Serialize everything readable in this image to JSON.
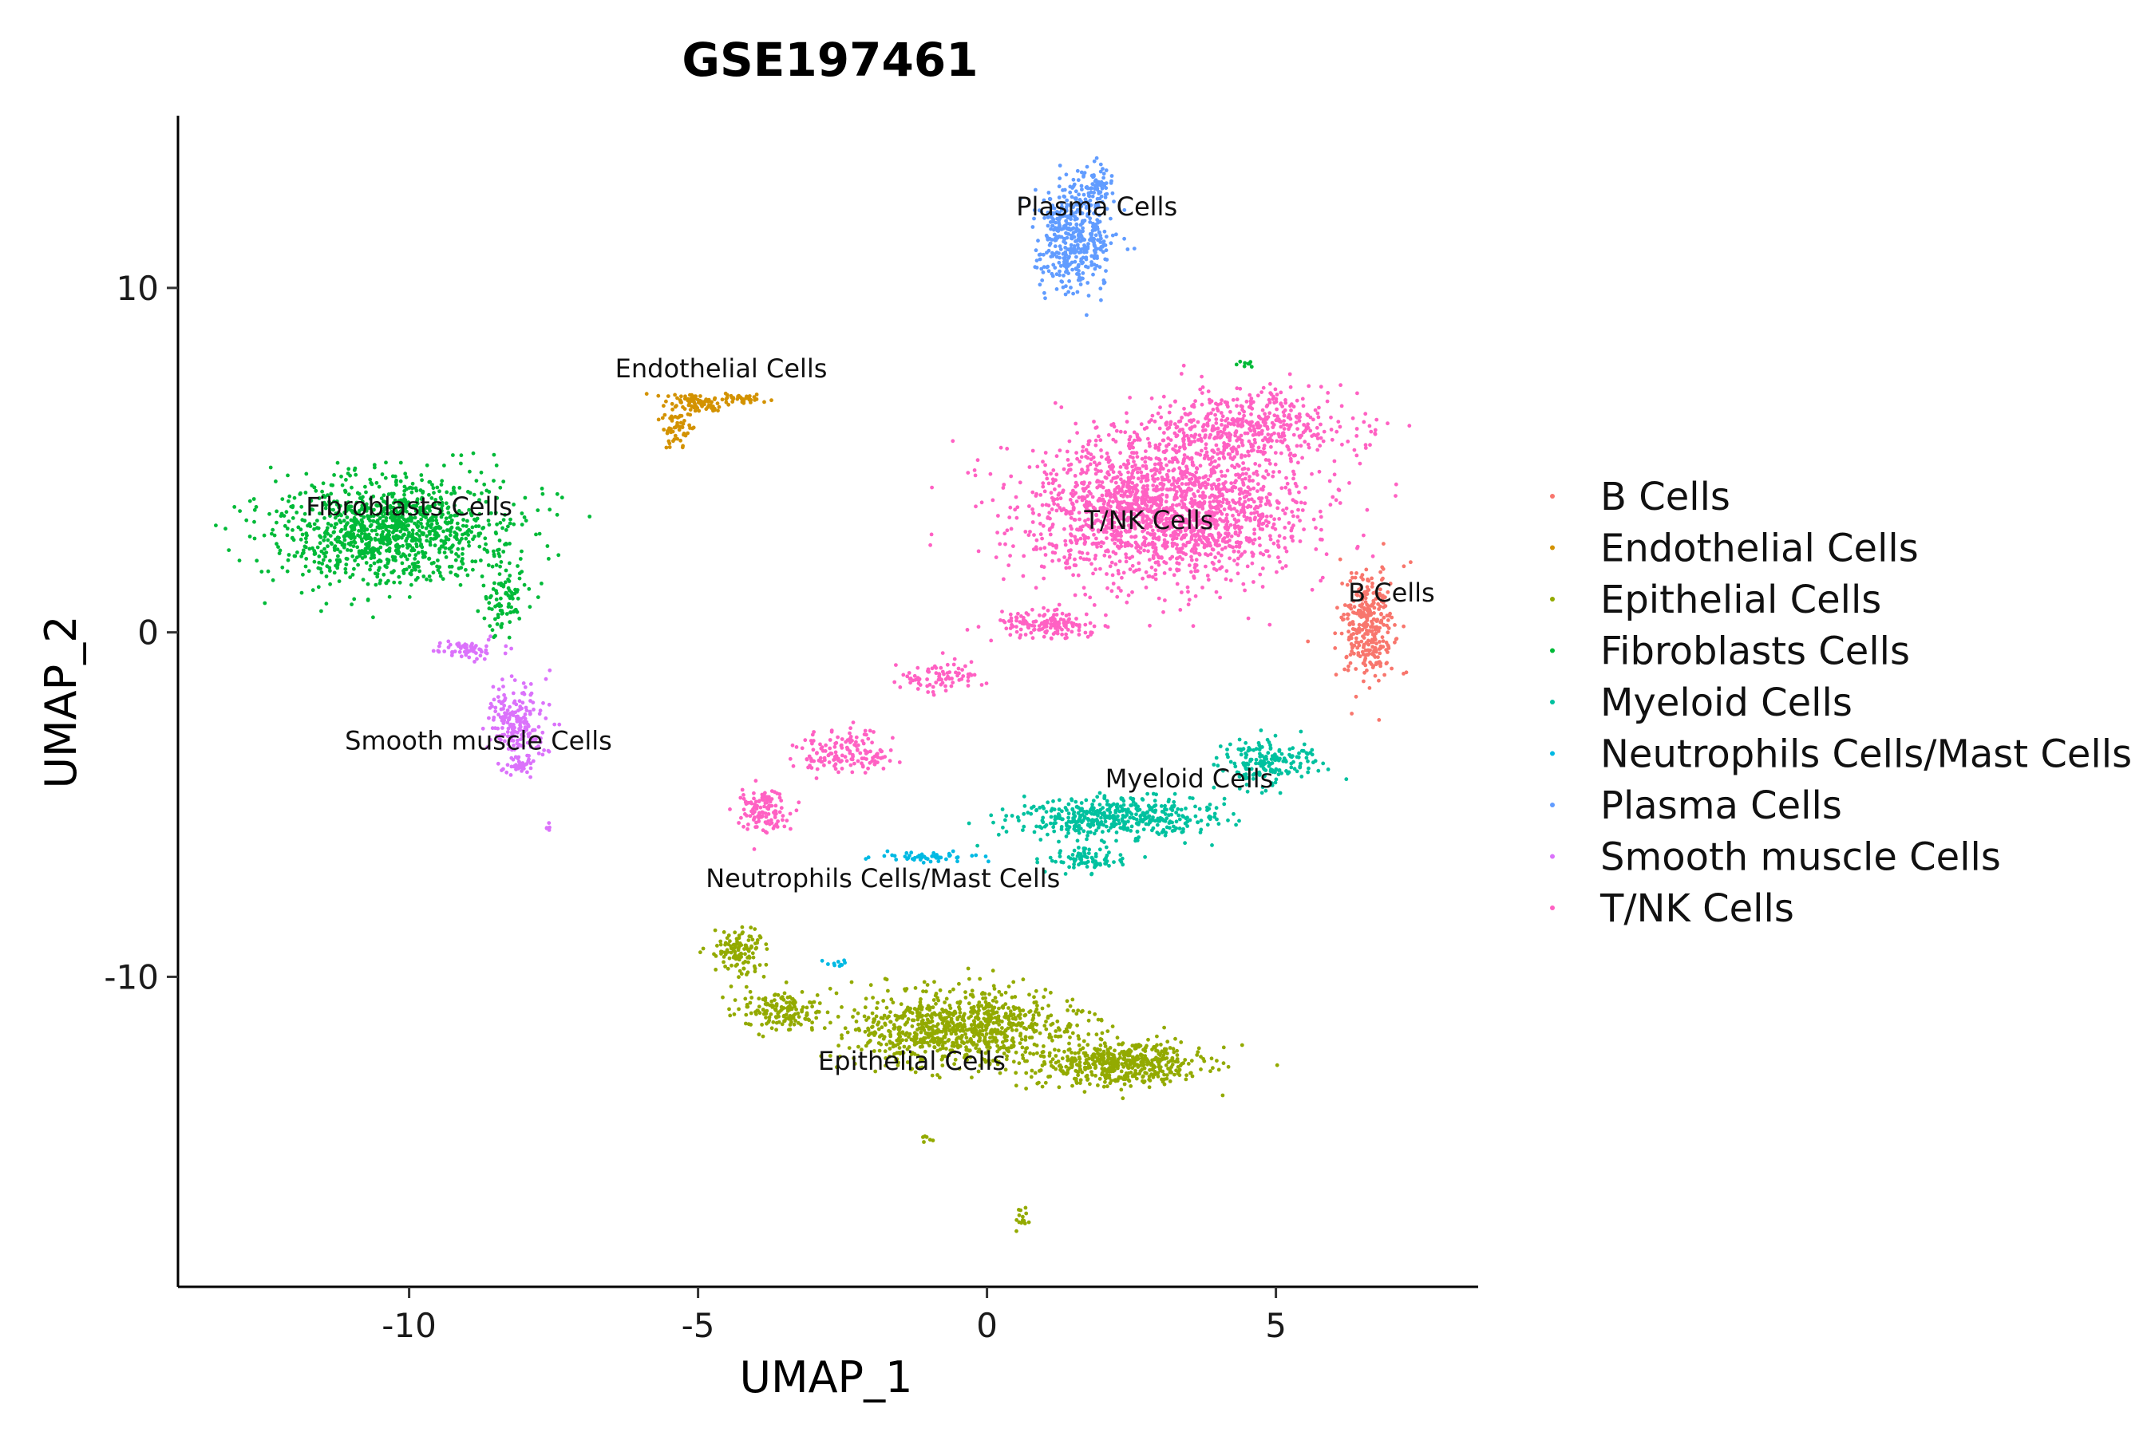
{
  "chart_data": {
    "type": "scatter",
    "title": "GSE197461",
    "xlabel": "UMAP_1",
    "ylabel": "UMAP_2",
    "xlim": [
      -14,
      8.5
    ],
    "ylim": [
      -19,
      15
    ],
    "x_ticks": [
      -10,
      -5,
      0,
      5
    ],
    "x_tick_labels": [
      "-10",
      "-5",
      "0",
      "5"
    ],
    "y_ticks": [
      10,
      0,
      -10
    ],
    "y_tick_labels": [
      "10",
      "0",
      "-10"
    ],
    "legend_position": "right",
    "series": [
      {
        "name": "B Cells",
        "color": "#F8766D",
        "blobs": [
          [
            6.6,
            0.2,
            0.45,
            1.5,
            320
          ]
        ],
        "label": {
          "text": "B Cells",
          "x": 7.0,
          "y": 0.9
        }
      },
      {
        "name": "Endothelial Cells",
        "color": "#D39200",
        "blobs": [
          [
            -5.0,
            6.7,
            0.55,
            0.25,
            90
          ],
          [
            -5.4,
            5.9,
            0.25,
            0.5,
            50
          ],
          [
            -4.2,
            6.8,
            0.4,
            0.12,
            30
          ]
        ],
        "label": {
          "text": "Endothelial Cells",
          "x": -4.6,
          "y": 7.4
        }
      },
      {
        "name": "Epithelial Cells",
        "color": "#93AA00",
        "blobs": [
          [
            -0.5,
            -11.5,
            1.8,
            1.0,
            900
          ],
          [
            2.3,
            -12.5,
            1.3,
            0.6,
            500
          ],
          [
            -4.3,
            -9.3,
            0.4,
            0.6,
            120
          ],
          [
            -3.6,
            -11.0,
            0.6,
            0.5,
            150
          ],
          [
            -1.0,
            -14.7,
            0.15,
            0.1,
            6
          ],
          [
            0.6,
            -17.0,
            0.15,
            0.4,
            14
          ]
        ],
        "label": {
          "text": "Epithelial Cells",
          "x": -1.3,
          "y": -12.7
        }
      },
      {
        "name": "Fibroblasts Cells",
        "color": "#00BA38",
        "blobs": [
          [
            -10.3,
            3.0,
            1.9,
            1.4,
            1100
          ],
          [
            -8.3,
            1.0,
            0.4,
            1.0,
            90
          ],
          [
            4.5,
            7.8,
            0.12,
            0.1,
            8
          ]
        ],
        "label": {
          "text": "Fibroblasts Cells",
          "x": -10.0,
          "y": 3.4
        }
      },
      {
        "name": "Myeloid Cells",
        "color": "#00C19F",
        "blobs": [
          [
            2.2,
            -5.4,
            1.6,
            0.55,
            450
          ],
          [
            4.9,
            -3.8,
            0.8,
            0.6,
            180
          ],
          [
            1.7,
            -6.6,
            0.7,
            0.3,
            80
          ]
        ],
        "label": {
          "text": "Myeloid Cells",
          "x": 3.5,
          "y": -4.5
        }
      },
      {
        "name": "Neutrophils Cells/Mast Cells",
        "color": "#00B9E3",
        "blobs": [
          [
            -1.0,
            -6.5,
            0.8,
            0.15,
            50
          ],
          [
            -2.6,
            -9.6,
            0.2,
            0.08,
            10
          ]
        ],
        "label": {
          "text": "Neutrophils Cells/Mast Cells",
          "x": -1.8,
          "y": -7.4
        }
      },
      {
        "name": "Plasma Cells",
        "color": "#619CFF",
        "blobs": [
          [
            1.5,
            11.5,
            0.55,
            1.4,
            450
          ],
          [
            1.9,
            13.0,
            0.3,
            0.4,
            60
          ]
        ],
        "label": {
          "text": "Plasma Cells",
          "x": 1.9,
          "y": 12.1
        }
      },
      {
        "name": "Smooth muscle Cells",
        "color": "#DB72FB",
        "blobs": [
          [
            -8.1,
            -2.6,
            0.45,
            0.9,
            200
          ],
          [
            -9.0,
            -0.5,
            0.5,
            0.25,
            60
          ],
          [
            -8.1,
            -3.9,
            0.25,
            0.3,
            40
          ],
          [
            -7.6,
            -5.6,
            0.06,
            0.1,
            5
          ]
        ],
        "label": {
          "text": "Smooth muscle Cells",
          "x": -8.8,
          "y": -3.4
        }
      },
      {
        "name": "T/NK Cells",
        "color": "#FF61C3",
        "blobs": [
          [
            3.1,
            3.6,
            2.2,
            1.9,
            1900
          ],
          [
            4.5,
            6.0,
            1.6,
            1.0,
            450
          ],
          [
            -2.5,
            -3.5,
            0.8,
            0.6,
            150
          ],
          [
            -3.9,
            -5.2,
            0.4,
            0.6,
            120
          ],
          [
            -0.8,
            -1.3,
            0.6,
            0.4,
            80
          ],
          [
            1.0,
            0.2,
            0.8,
            0.4,
            150
          ]
        ],
        "label": {
          "text": "T/NK Cells",
          "x": 2.8,
          "y": 3.0
        }
      }
    ]
  }
}
